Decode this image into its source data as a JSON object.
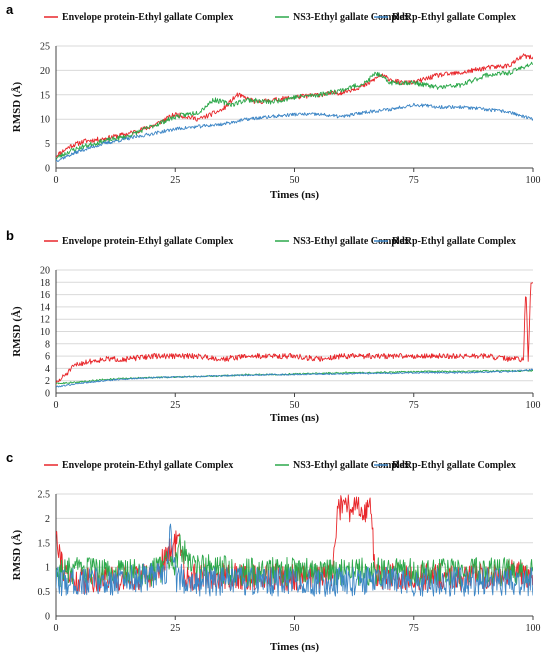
{
  "panels": [
    {
      "label": "a",
      "chart_data": {
        "type": "line",
        "xlabel": "Times (ns)",
        "ylabel": "RMSD (Å)",
        "xlim": [
          0,
          100
        ],
        "ylim": [
          0,
          25
        ],
        "xticks": [
          0,
          25,
          50,
          75,
          100
        ],
        "yticks": [
          0,
          5,
          10,
          15,
          20,
          25
        ],
        "grid": "horizontal",
        "legend": "top",
        "series": [
          {
            "name": "Envelope protein-Ethyl gallate Complex",
            "color": "#e8262a",
            "x": [
              0,
              3,
              6,
              10,
              15,
              20,
              25,
              30,
              35,
              38,
              42,
              46,
              50,
              55,
              60,
              65,
              68,
              72,
              75,
              80,
              85,
              90,
              95,
              98,
              100
            ],
            "y": [
              2.5,
              4.5,
              5.5,
              6,
              7,
              8.5,
              11,
              10,
              12,
              15,
              13.5,
              14,
              14.5,
              15,
              15.5,
              17,
              19,
              17.5,
              17.5,
              19,
              19.5,
              20.5,
              21,
              23,
              22.5
            ],
            "noise": 0.5,
            "seed": 11
          },
          {
            "name": "NS3-Ethyl gallate Complex",
            "color": "#2ca84a",
            "x": [
              0,
              3,
              6,
              10,
              15,
              20,
              25,
              30,
              33,
              37,
              40,
              45,
              50,
              55,
              60,
              65,
              67,
              70,
              75,
              80,
              85,
              90,
              95,
              100
            ],
            "y": [
              2,
              3.5,
              4.5,
              5.5,
              6.5,
              8.5,
              10.5,
              11.5,
              14,
              13,
              14,
              13.5,
              14.5,
              15,
              16,
              17.5,
              19.5,
              17.5,
              17.5,
              16.5,
              17,
              19,
              19.5,
              21.5
            ],
            "noise": 0.5,
            "seed": 23
          },
          {
            "name": "RdRp-Ethyl gallate Complex",
            "color": "#3d86c6",
            "x": [
              0,
              5,
              10,
              15,
              20,
              25,
              30,
              35,
              40,
              45,
              50,
              55,
              60,
              65,
              70,
              75,
              80,
              85,
              90,
              95,
              98,
              100
            ],
            "y": [
              1.5,
              3.5,
              5,
              6,
              7,
              8,
              8.5,
              9,
              10,
              10.5,
              11,
              11,
              10.5,
              11.5,
              12,
              13,
              12.5,
              12.5,
              12,
              11.5,
              10.5,
              10
            ],
            "noise": 0.35,
            "seed": 37
          }
        ]
      }
    },
    {
      "label": "b",
      "chart_data": {
        "type": "line",
        "xlabel": "Times (ns)",
        "ylabel": "RMSD (Å)",
        "xlim": [
          0,
          100
        ],
        "ylim": [
          0,
          20
        ],
        "xticks": [
          0,
          25,
          50,
          75,
          100
        ],
        "yticks": [
          0,
          2,
          4,
          6,
          8,
          10,
          12,
          14,
          16,
          18,
          20
        ],
        "grid": "horizontal",
        "legend": "top",
        "series": [
          {
            "name": "Envelope protein-Ethyl gallate Complex",
            "color": "#e8262a",
            "x": [
              0,
              2,
              4,
              6,
              10,
              15,
              20,
              25,
              30,
              35,
              40,
              45,
              50,
              55,
              60,
              65,
              70,
              75,
              80,
              85,
              90,
              95,
              98,
              98.5,
              99,
              99.5,
              100
            ],
            "y": [
              1.5,
              3,
              4.5,
              5,
              5.5,
              5.5,
              6,
              6,
              6,
              5.5,
              6,
              6,
              6,
              5.5,
              6,
              6,
              6,
              6,
              6,
              6,
              6,
              5.5,
              5.5,
              17.5,
              5,
              17.5,
              17.5
            ],
            "noise": 0.45,
            "seed": 51
          },
          {
            "name": "NS3-Ethyl gallate Complex",
            "color": "#2ca84a",
            "x": [
              0,
              5,
              10,
              15,
              20,
              25,
              30,
              35,
              40,
              45,
              50,
              55,
              60,
              65,
              70,
              75,
              80,
              85,
              90,
              95,
              100
            ],
            "y": [
              1.5,
              1.8,
              2.2,
              2.4,
              2.5,
              2.6,
              2.7,
              2.8,
              3,
              3,
              3.1,
              3.2,
              3.3,
              3.3,
              3.4,
              3.5,
              3.5,
              3.5,
              3.6,
              3.6,
              3.6
            ],
            "noise": 0.12,
            "seed": 63
          },
          {
            "name": "RdRp-Ethyl gallate Complex",
            "color": "#3d86c6",
            "x": [
              0,
              5,
              10,
              15,
              20,
              25,
              30,
              35,
              40,
              45,
              50,
              55,
              60,
              65,
              70,
              75,
              80,
              85,
              90,
              95,
              100
            ],
            "y": [
              1,
              1.6,
              2,
              2.3,
              2.5,
              2.6,
              2.7,
              2.8,
              2.9,
              3,
              3,
              3.1,
              3.1,
              3.2,
              3.2,
              3.3,
              3.3,
              3.3,
              3.4,
              3.5,
              3.8
            ],
            "noise": 0.12,
            "seed": 79
          }
        ]
      }
    },
    {
      "label": "c",
      "chart_data": {
        "type": "line",
        "xlabel": "Times (ns)",
        "ylabel": "RMSD (Å)",
        "xlim": [
          0,
          100
        ],
        "ylim": [
          0,
          2.5
        ],
        "xticks": [
          0,
          25,
          50,
          75,
          100
        ],
        "yticks": [
          0,
          0.5,
          1,
          1.5,
          2,
          2.5
        ],
        "grid": "horizontal",
        "legend": "top",
        "series": [
          {
            "name": "Envelope protein-Ethyl gallate Complex",
            "color": "#e8262a",
            "x": [
              0,
              1,
              2,
              5,
              10,
              20,
              26,
              27,
              30,
              40,
              50,
              58,
              59,
              60,
              65,
              66,
              67,
              70,
              80,
              90,
              95,
              100
            ],
            "y": [
              1.8,
              1.2,
              0.8,
              0.7,
              0.8,
              0.8,
              1.6,
              0.8,
              0.8,
              0.8,
              0.8,
              0.8,
              2.2,
              2.2,
              2.2,
              2.2,
              0.8,
              0.8,
              0.8,
              0.8,
              0.9,
              0.8
            ],
            "noise": 0.28,
            "seed": 91
          },
          {
            "name": "NS3-Ethyl gallate Complex",
            "color": "#2ca84a",
            "x": [
              0,
              10,
              20,
              25,
              26,
              30,
              40,
              50,
              60,
              70,
              80,
              90,
              100
            ],
            "y": [
              0.9,
              0.9,
              0.9,
              1.1,
              1.4,
              1,
              0.9,
              0.9,
              0.9,
              0.9,
              0.9,
              0.9,
              0.9
            ],
            "noise": 0.3,
            "seed": 103
          },
          {
            "name": "RdRp-Ethyl gallate Complex",
            "color": "#3d86c6",
            "x": [
              0,
              10,
              20,
              23,
              24,
              25,
              30,
              40,
              50,
              60,
              70,
              80,
              90,
              100
            ],
            "y": [
              0.7,
              0.7,
              0.8,
              0.8,
              1.8,
              0.8,
              0.7,
              0.7,
              0.7,
              0.7,
              0.7,
              0.7,
              0.7,
              0.7
            ],
            "noise": 0.3,
            "seed": 117
          }
        ]
      }
    }
  ]
}
